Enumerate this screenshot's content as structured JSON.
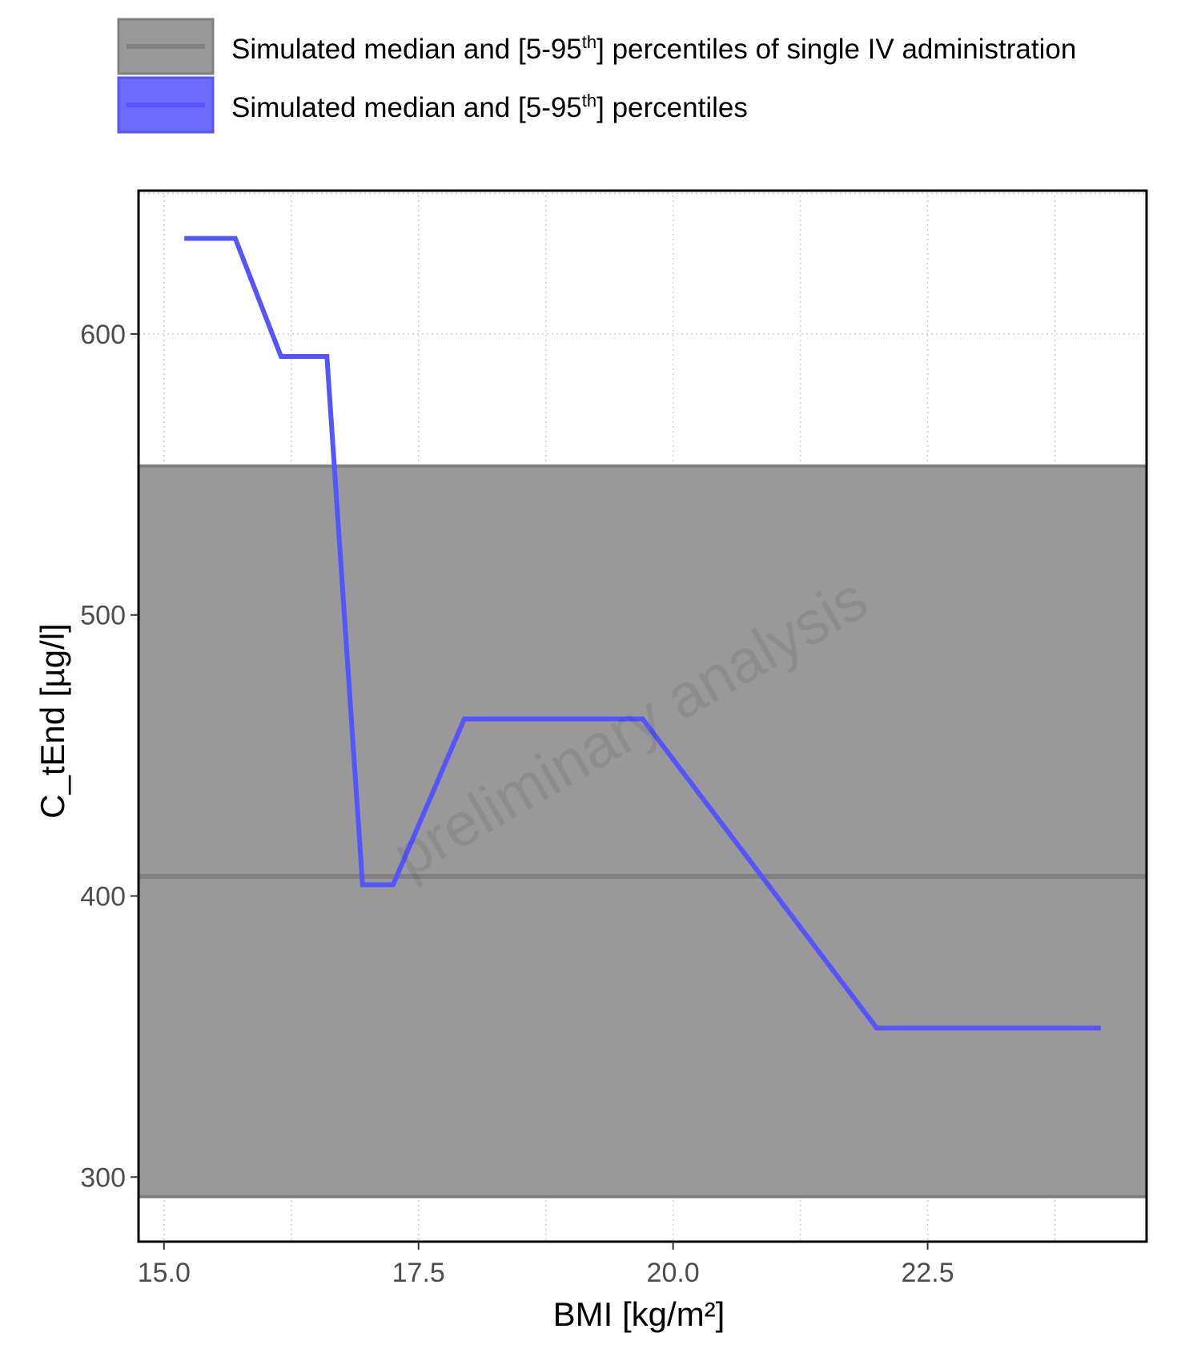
{
  "legend": {
    "items": [
      {
        "pre": "Simulated median and [5-95",
        "sup": "th",
        "post": "] percentiles of single IV administration",
        "color": "#808080",
        "fill": "#999999"
      },
      {
        "pre": "Simulated median and [5-95",
        "sup": "th",
        "post": "] percentiles",
        "color": "#5555ff",
        "fill": "#6b6bff"
      }
    ]
  },
  "watermark": "preliminary analysis",
  "chart_data": {
    "type": "line",
    "xlabel": "BMI [kg/m²]",
    "ylabel": "C_tEnd [µg/l]",
    "xlim": [
      14.75,
      24.65
    ],
    "ylim": [
      277,
      651
    ],
    "x_ticks": [
      15.0,
      17.5,
      20.0,
      22.5
    ],
    "x_tick_labels": [
      "15.0",
      "17.5",
      "20.0",
      "22.5"
    ],
    "y_ticks": [
      300,
      400,
      500,
      600
    ],
    "y_tick_labels": [
      "300",
      "400",
      "500",
      "600"
    ],
    "grid": true,
    "reference_band": {
      "name": "Simulated median and [5-95th] percentiles of single IV administration",
      "median": 407,
      "p5": 293,
      "p95": 553,
      "color": "#999999"
    },
    "series": [
      {
        "name": "Simulated median and [5-95th] percentiles",
        "color": "#5555ff",
        "x": [
          15.2,
          15.7,
          16.15,
          16.6,
          16.95,
          17.25,
          17.95,
          19.7,
          22.0,
          24.2
        ],
        "y": [
          634,
          634,
          592,
          592,
          404,
          404,
          463,
          463,
          353,
          353
        ]
      }
    ]
  }
}
